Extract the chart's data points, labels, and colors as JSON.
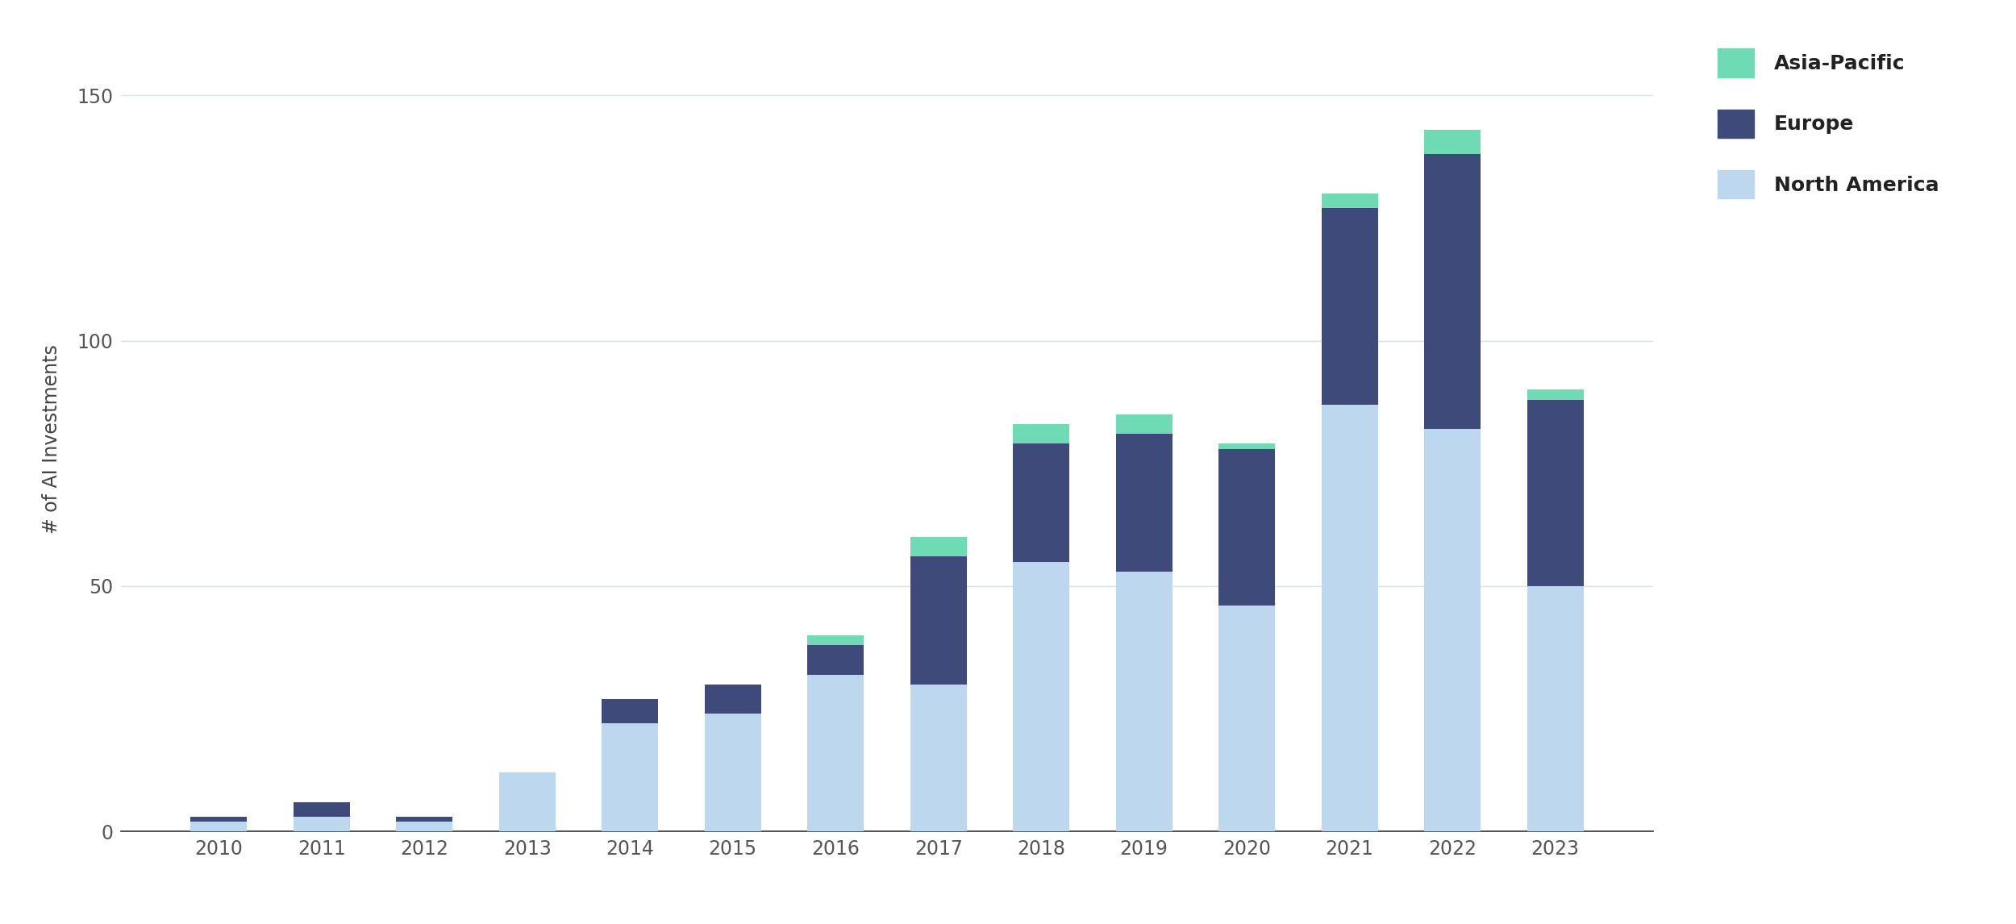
{
  "years": [
    "2010",
    "2011",
    "2012",
    "2013",
    "2014",
    "2015",
    "2016",
    "2017",
    "2018",
    "2019",
    "2020",
    "2021",
    "2022",
    "2023"
  ],
  "north_america": [
    2,
    3,
    2,
    12,
    22,
    24,
    32,
    30,
    55,
    53,
    46,
    87,
    82,
    50
  ],
  "europe": [
    1,
    3,
    1,
    0,
    5,
    6,
    6,
    26,
    24,
    28,
    32,
    40,
    56,
    38
  ],
  "asia_pacific": [
    0,
    0,
    0,
    0,
    0,
    0,
    2,
    4,
    4,
    4,
    1,
    3,
    5,
    2
  ],
  "color_north_america": "#bdd7ee",
  "color_europe": "#3d4a7a",
  "color_asia_pacific": "#6edbb4",
  "ylabel": "# of AI Investments",
  "ylim": [
    0,
    160
  ],
  "yticks": [
    0,
    50,
    100,
    150
  ],
  "legend_labels": [
    "Asia-Pacific",
    "Europe",
    "North America"
  ],
  "background_color": "#ffffff",
  "grid_color": "#d0e4f0",
  "bar_width": 0.55
}
